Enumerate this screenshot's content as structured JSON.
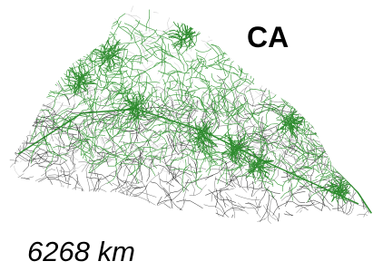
{
  "map": {
    "label": "CA",
    "caption": "6268 km"
  }
}
